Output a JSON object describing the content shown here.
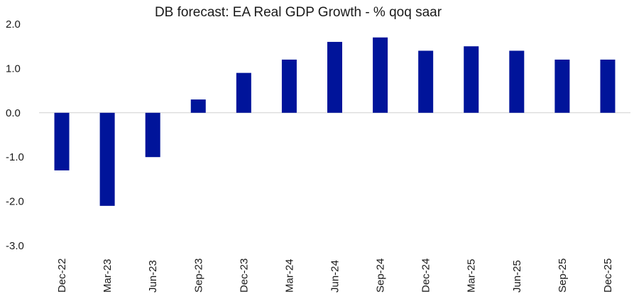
{
  "chart_data": {
    "type": "bar",
    "title": "DB forecast: EA Real GDP Growth - % qoq saar",
    "xlabel": "",
    "ylabel": "",
    "categories": [
      "Dec-22",
      "Mar-23",
      "Jun-23",
      "Sep-23",
      "Dec-23",
      "Mar-24",
      "Jun-24",
      "Sep-24",
      "Dec-24",
      "Mar-25",
      "Jun-25",
      "Sep-25",
      "Dec-25"
    ],
    "values": [
      -1.3,
      -2.1,
      -1.0,
      0.3,
      0.9,
      1.2,
      1.6,
      1.7,
      1.4,
      1.5,
      1.4,
      1.2,
      1.2
    ],
    "ylim": [
      -3.0,
      2.0
    ],
    "yticks": [
      "2.0",
      "1.0",
      "0.0",
      "-1.0",
      "-2.0",
      "-3.0"
    ],
    "bar_color": "#00149A",
    "zero_line_color": "#D0D0D0",
    "grid": false,
    "legend": "none"
  }
}
